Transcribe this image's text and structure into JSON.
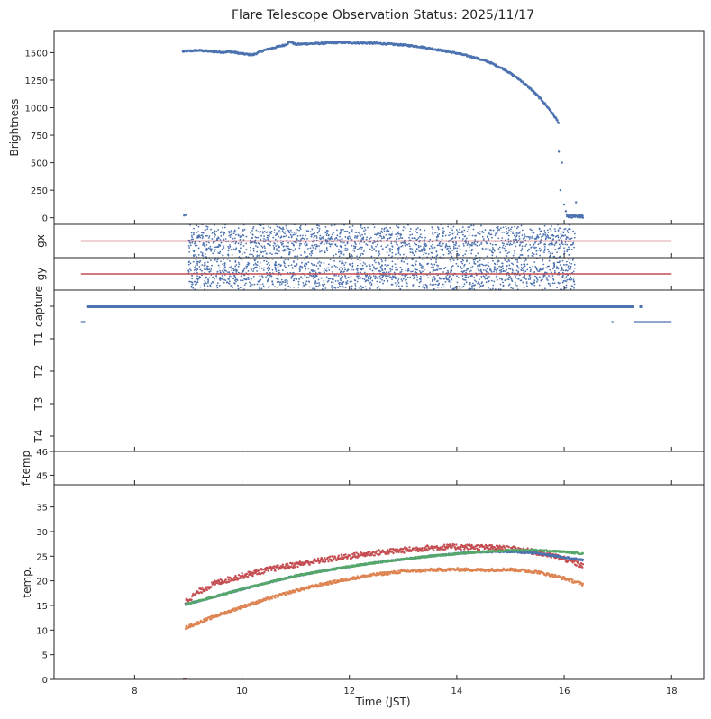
{
  "chart_data": {
    "title": "Flare Telescope Observation Status: 2025/11/17",
    "xlabel": "Time (JST)",
    "xlim": [
      6.5,
      18.6
    ],
    "xticks": [
      8,
      10,
      12,
      14,
      16,
      18
    ],
    "colors": {
      "blue": "#4c72b0",
      "red": "#c44e52",
      "green": "#55a868",
      "orange": "#dd8452"
    },
    "panels": [
      {
        "id": "brightness",
        "type": "scatter",
        "ylabel": "Brightness",
        "ylim": [
          -60,
          1700
        ],
        "yticks": [
          0,
          250,
          500,
          750,
          1000,
          1250,
          1500
        ],
        "series": [
          {
            "name": "Brightness",
            "color": "blue",
            "x": [
              8.9,
              9.0,
              9.2,
              9.4,
              9.6,
              9.8,
              10.0,
              10.2,
              10.4,
              10.6,
              10.8,
              10.9,
              11.0,
              11.2,
              11.5,
              11.8,
              12.0,
              12.5,
              13.0,
              13.3,
              13.6,
              14.0,
              14.3,
              14.6,
              14.9,
              15.2,
              15.4,
              15.6,
              15.75,
              15.85,
              15.9
            ],
            "y": [
              1510,
              1515,
              1520,
              1512,
              1505,
              1508,
              1490,
              1480,
              1520,
              1545,
              1570,
              1600,
              1575,
              1580,
              1585,
              1592,
              1590,
              1585,
              1570,
              1555,
              1530,
              1495,
              1460,
              1415,
              1345,
              1245,
              1160,
              1060,
              970,
              900,
              860
            ]
          },
          {
            "name": "Brightness (dropout)",
            "color": "blue",
            "x": [
              8.92,
              8.95,
              15.9,
              15.93,
              15.96,
              16.0,
              16.03,
              16.05,
              16.08,
              16.12,
              16.18,
              16.22,
              16.25,
              16.3,
              16.35
            ],
            "y": [
              20,
              25,
              600,
              250,
              500,
              120,
              60,
              30,
              10,
              5,
              10,
              140,
              5,
              2,
              0
            ]
          }
        ]
      },
      {
        "id": "gx",
        "type": "scatter",
        "ylabel": "gx",
        "ylim": [
          -1,
          1
        ],
        "yticks": [],
        "scatter": {
          "name": "gx",
          "color": "blue",
          "range": [
            9.0,
            16.2
          ],
          "spread": 0.85
        },
        "lines": [
          {
            "name": "gx mean",
            "color": "red",
            "x": [
              7.0,
              18.0
            ],
            "y": [
              0.0,
              0.0
            ]
          }
        ]
      },
      {
        "id": "gy",
        "type": "scatter",
        "ylabel": "gy",
        "ylim": [
          -1,
          1
        ],
        "yticks": [],
        "scatter": {
          "name": "gy",
          "color": "blue",
          "range": [
            9.0,
            16.2
          ],
          "spread": 0.85
        },
        "lines": [
          {
            "name": "gy mean",
            "color": "red",
            "x": [
              7.0,
              18.0
            ],
            "y": [
              0.0,
              0.0
            ]
          }
        ]
      },
      {
        "id": "status",
        "type": "timeline",
        "rows": [
          "capture",
          "T1",
          "T2",
          "T3",
          "T4"
        ],
        "segments": [
          {
            "row": "capture",
            "x0": 7.1,
            "x1": 17.3,
            "color": "blue",
            "weight": "thick"
          },
          {
            "row": "capture",
            "x0": 17.4,
            "x1": 17.45,
            "color": "blue",
            "weight": "thick"
          },
          {
            "row": "T1",
            "x0": 7.0,
            "x1": 7.08,
            "color": "blue",
            "weight": "thin"
          },
          {
            "row": "T1",
            "x0": 16.88,
            "x1": 16.92,
            "color": "blue",
            "weight": "thin"
          },
          {
            "row": "T1",
            "x0": 17.3,
            "x1": 18.0,
            "color": "blue",
            "weight": "thin"
          }
        ]
      },
      {
        "id": "ftemp",
        "type": "line",
        "ylabel": "f-temp",
        "ylim": [
          44.6,
          46
        ],
        "yticks": [
          45,
          46
        ]
      },
      {
        "id": "temp",
        "type": "scatter",
        "ylabel": "temp.",
        "ylim": [
          0,
          39.5
        ],
        "yticks": [
          0,
          5,
          10,
          15,
          20,
          25,
          30,
          35
        ],
        "series": [
          {
            "name": "temp red",
            "color": "red",
            "x": [
              8.95,
              9.2,
              9.5,
              10.0,
              10.5,
              11.0,
              11.5,
              12.0,
              12.5,
              13.0,
              13.5,
              14.0,
              14.5,
              15.0,
              15.5,
              16.0,
              16.35
            ],
            "y": [
              15.8,
              17.8,
              19.5,
              21.0,
              22.3,
              23.3,
              24.2,
              25.0,
              25.7,
              26.2,
              26.7,
              26.9,
              26.8,
              26.5,
              25.8,
              24.5,
              23.0
            ]
          },
          {
            "name": "temp blue",
            "color": "blue",
            "x": [
              8.95,
              9.5,
              10.0,
              10.5,
              11.0,
              11.5,
              12.0,
              12.5,
              13.0,
              13.5,
              14.0,
              14.5,
              15.0,
              15.5,
              16.0,
              16.35
            ],
            "y": [
              15.2,
              16.8,
              18.3,
              19.7,
              21.0,
              22.0,
              22.9,
              23.7,
              24.4,
              25.0,
              25.5,
              25.9,
              25.9,
              25.6,
              24.8,
              24.2
            ]
          },
          {
            "name": "temp green",
            "color": "green",
            "x": [
              8.95,
              9.5,
              10.0,
              10.5,
              11.0,
              11.5,
              12.0,
              12.5,
              13.0,
              13.5,
              14.0,
              14.5,
              15.0,
              15.5,
              16.0,
              16.35
            ],
            "y": [
              15.2,
              16.8,
              18.3,
              19.7,
              21.0,
              22.0,
              22.9,
              23.7,
              24.4,
              25.0,
              25.5,
              25.9,
              26.2,
              26.2,
              25.9,
              25.5
            ]
          },
          {
            "name": "temp orange",
            "color": "orange",
            "x": [
              8.95,
              9.5,
              10.0,
              10.5,
              11.0,
              11.5,
              12.0,
              12.5,
              13.0,
              13.5,
              14.0,
              14.5,
              15.0,
              15.5,
              16.0,
              16.35
            ],
            "y": [
              10.5,
              12.8,
              14.7,
              16.4,
              18.0,
              19.3,
              20.4,
              21.3,
              21.9,
              22.2,
              22.3,
              22.2,
              22.3,
              21.8,
              20.5,
              19.3
            ]
          },
          {
            "name": "temp marker",
            "color": "red",
            "x": [
              8.9,
              8.93,
              8.97
            ],
            "y": [
              0.1,
              0.1,
              0.1
            ]
          }
        ]
      }
    ]
  }
}
